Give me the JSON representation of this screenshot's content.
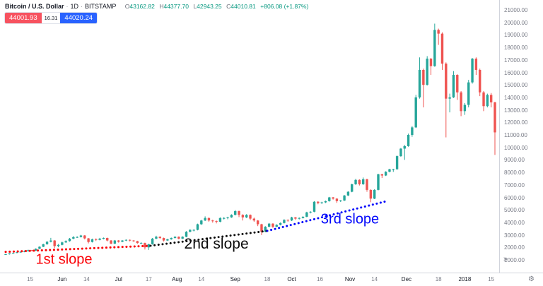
{
  "header": {
    "symbol": "Bitcoin / U.S. Dollar",
    "sep": "·",
    "interval": "1D",
    "exchange": "BITSTAMP",
    "ohlc": {
      "o_label": "O",
      "o": "43162.82",
      "h_label": "H",
      "h": "44377.70",
      "l_label": "L",
      "l": "42943.25",
      "c_label": "C",
      "c": "44010.81",
      "change": "+806.08 (+1.87%)"
    },
    "sell_price": "44001.93",
    "spread": "16.31",
    "buy_price": "44020.24"
  },
  "icons": {
    "chevrons": "»",
    "gear": "⚙"
  },
  "colors": {
    "up": "#26a69a",
    "down": "#ef5350",
    "sell_bg": "#f7525f",
    "buy_bg": "#2962ff",
    "value_text": "#089981",
    "axis_text": "#787b86"
  },
  "chart_data": {
    "type": "candlestick",
    "title": "Bitcoin / U.S. Dollar, 1D, BITSTAMP",
    "y_axis": {
      "min": 1000,
      "max": 21000,
      "step": 1000,
      "unit": "USD",
      "grid": false
    },
    "x_axis_labels": [
      {
        "t": "15",
        "i": 6.5
      },
      {
        "t": "Jun",
        "i": 15,
        "strong": true
      },
      {
        "t": "14",
        "i": 21.5
      },
      {
        "t": "Jul",
        "i": 30,
        "strong": true
      },
      {
        "t": "17",
        "i": 38
      },
      {
        "t": "Aug",
        "i": 45.5,
        "strong": true
      },
      {
        "t": "14",
        "i": 52
      },
      {
        "t": "Sep",
        "i": 61,
        "strong": true
      },
      {
        "t": "18",
        "i": 69.5
      },
      {
        "t": "Oct",
        "i": 76,
        "strong": true
      },
      {
        "t": "16",
        "i": 83.5
      },
      {
        "t": "Nov",
        "i": 91.5,
        "strong": true
      },
      {
        "t": "14",
        "i": 98
      },
      {
        "t": "Dec",
        "i": 106.5,
        "strong": true
      },
      {
        "t": "18",
        "i": 115
      },
      {
        "t": "2018",
        "i": 122,
        "strong": true
      },
      {
        "t": "15",
        "i": 129
      }
    ],
    "candles": [
      [
        1430,
        1480,
        1390,
        1450
      ],
      [
        1450,
        1540,
        1420,
        1520
      ],
      [
        1520,
        1580,
        1490,
        1560
      ],
      [
        1560,
        1640,
        1530,
        1610
      ],
      [
        1610,
        1670,
        1560,
        1650
      ],
      [
        1650,
        1750,
        1610,
        1690
      ],
      [
        1690,
        1820,
        1660,
        1780
      ],
      [
        1780,
        1800,
        1680,
        1740
      ],
      [
        1740,
        1920,
        1710,
        1890
      ],
      [
        1890,
        2090,
        1860,
        2050
      ],
      [
        2050,
        2290,
        2020,
        2250
      ],
      [
        2250,
        2500,
        2210,
        2450
      ],
      [
        2450,
        2760,
        2400,
        2550
      ],
      [
        2550,
        2580,
        1940,
        2100
      ],
      [
        2100,
        2270,
        2010,
        2200
      ],
      [
        2200,
        2460,
        2160,
        2400
      ],
      [
        2400,
        2560,
        2350,
        2500
      ],
      [
        2500,
        2750,
        2460,
        2700
      ],
      [
        2700,
        2900,
        2650,
        2820
      ],
      [
        2820,
        2890,
        2750,
        2830
      ],
      [
        2830,
        3000,
        2790,
        2950
      ],
      [
        2950,
        2980,
        2640,
        2720
      ],
      [
        2720,
        2750,
        2320,
        2430
      ],
      [
        2430,
        2700,
        2390,
        2650
      ],
      [
        2650,
        2720,
        2510,
        2600
      ],
      [
        2600,
        2760,
        2560,
        2700
      ],
      [
        2700,
        2790,
        2640,
        2750
      ],
      [
        2750,
        2780,
        2480,
        2550
      ],
      [
        2550,
        2590,
        2250,
        2300
      ],
      [
        2300,
        2590,
        2260,
        2550
      ],
      [
        2550,
        2580,
        2380,
        2450
      ],
      [
        2450,
        2590,
        2410,
        2550
      ],
      [
        2550,
        2640,
        2500,
        2600
      ],
      [
        2600,
        2630,
        2480,
        2550
      ],
      [
        2550,
        2580,
        2440,
        2500
      ],
      [
        2500,
        2530,
        2290,
        2350
      ],
      [
        2350,
        2420,
        2270,
        2350
      ],
      [
        2350,
        2380,
        1830,
        2000
      ],
      [
        2000,
        2290,
        1800,
        2250
      ],
      [
        2250,
        2750,
        2220,
        2700
      ],
      [
        2700,
        2930,
        2650,
        2850
      ],
      [
        2850,
        2880,
        2680,
        2750
      ],
      [
        2750,
        2780,
        2470,
        2550
      ],
      [
        2550,
        2690,
        2510,
        2650
      ],
      [
        2650,
        2790,
        2610,
        2750
      ],
      [
        2750,
        2890,
        2710,
        2850
      ],
      [
        2850,
        2880,
        2640,
        2700
      ],
      [
        2700,
        2890,
        2660,
        2850
      ],
      [
        2850,
        3300,
        2810,
        3250
      ],
      [
        3250,
        3450,
        3200,
        3400
      ],
      [
        3400,
        3450,
        3280,
        3400
      ],
      [
        3400,
        3900,
        3360,
        3850
      ],
      [
        3850,
        4200,
        3800,
        4150
      ],
      [
        4150,
        4480,
        4110,
        4350
      ],
      [
        4350,
        4390,
        4050,
        4150
      ],
      [
        4150,
        4210,
        3980,
        4100
      ],
      [
        4100,
        4150,
        3920,
        4050
      ],
      [
        4050,
        4400,
        4010,
        4350
      ],
      [
        4350,
        4420,
        4230,
        4350
      ],
      [
        4350,
        4450,
        4250,
        4400
      ],
      [
        4400,
        4650,
        4360,
        4600
      ],
      [
        4600,
        4980,
        4560,
        4900
      ],
      [
        4900,
        4940,
        4420,
        4600
      ],
      [
        4600,
        4650,
        4150,
        4400
      ],
      [
        4400,
        4660,
        4340,
        4600
      ],
      [
        4600,
        4640,
        4190,
        4300
      ],
      [
        4300,
        4380,
        4050,
        4150
      ],
      [
        4150,
        4180,
        3700,
        3850
      ],
      [
        3850,
        3890,
        2980,
        3250
      ],
      [
        3250,
        3700,
        3210,
        3650
      ],
      [
        3650,
        3950,
        3610,
        3900
      ],
      [
        3900,
        3930,
        3560,
        3650
      ],
      [
        3650,
        3850,
        3610,
        3800
      ],
      [
        3800,
        3990,
        3760,
        3950
      ],
      [
        3950,
        4250,
        3910,
        4200
      ],
      [
        4200,
        4230,
        4050,
        4150
      ],
      [
        4150,
        4450,
        4110,
        4400
      ],
      [
        4400,
        4430,
        4200,
        4300
      ],
      [
        4300,
        4400,
        4230,
        4350
      ],
      [
        4350,
        4490,
        4310,
        4450
      ],
      [
        4450,
        4850,
        4410,
        4800
      ],
      [
        4800,
        4890,
        4720,
        4850
      ],
      [
        4850,
        5700,
        4810,
        5650
      ],
      [
        5650,
        5690,
        5450,
        5550
      ],
      [
        5550,
        5650,
        5480,
        5600
      ],
      [
        5600,
        5740,
        5550,
        5700
      ],
      [
        5700,
        6040,
        5660,
        6000
      ],
      [
        6000,
        6030,
        5820,
        5900
      ],
      [
        5900,
        5930,
        5560,
        5700
      ],
      [
        5700,
        5790,
        5630,
        5750
      ],
      [
        5750,
        6190,
        5710,
        6150
      ],
      [
        6150,
        6490,
        6110,
        6450
      ],
      [
        6450,
        7090,
        6410,
        7050
      ],
      [
        7050,
        7480,
        7000,
        7400
      ],
      [
        7400,
        7440,
        6950,
        7050
      ],
      [
        7050,
        7590,
        7000,
        7450
      ],
      [
        7450,
        7490,
        6450,
        6600
      ],
      [
        6600,
        6640,
        5610,
        5900
      ],
      [
        5900,
        6650,
        5860,
        6600
      ],
      [
        6600,
        7890,
        6560,
        7850
      ],
      [
        7850,
        7880,
        7550,
        7750
      ],
      [
        7750,
        8090,
        7710,
        8050
      ],
      [
        8050,
        8290,
        8000,
        8250
      ],
      [
        8250,
        8290,
        8040,
        8250
      ],
      [
        8250,
        9350,
        8210,
        9300
      ],
      [
        9300,
        9950,
        9250,
        9900
      ],
      [
        9900,
        10200,
        9000,
        10100
      ],
      [
        10100,
        11100,
        10050,
        11000
      ],
      [
        11000,
        11700,
        10850,
        11600
      ],
      [
        11600,
        14200,
        11550,
        14000
      ],
      [
        14000,
        17200,
        13900,
        16200
      ],
      [
        16200,
        16300,
        13200,
        15000
      ],
      [
        15000,
        17300,
        14950,
        17100
      ],
      [
        17100,
        17150,
        15800,
        16500
      ],
      [
        16500,
        19900,
        16450,
        19400
      ],
      [
        19400,
        19500,
        18200,
        19100
      ],
      [
        19100,
        19200,
        16200,
        16700
      ],
      [
        16700,
        16800,
        10800,
        13900
      ],
      [
        13900,
        14300,
        12800,
        14000
      ],
      [
        14000,
        16100,
        13950,
        15800
      ],
      [
        15800,
        15850,
        13800,
        14400
      ],
      [
        14400,
        14500,
        12500,
        12900
      ],
      [
        12900,
        13550,
        12600,
        13400
      ],
      [
        13400,
        15400,
        13200,
        15200
      ],
      [
        15200,
        17150,
        15100,
        17100
      ],
      [
        17100,
        17200,
        15800,
        16200
      ],
      [
        16200,
        16300,
        14100,
        14400
      ],
      [
        14400,
        14500,
        12900,
        13300
      ],
      [
        13300,
        14300,
        13200,
        14200
      ],
      [
        14200,
        14350,
        13200,
        13600
      ],
      [
        13600,
        13650,
        9400,
        11200
      ]
    ],
    "annotations": {
      "slopes": [
        {
          "id": "slope-1",
          "color": "#fb0207",
          "from": {
            "i": 0,
            "p": 1640
          },
          "to": {
            "i": 38.5,
            "p": 2130
          },
          "label": {
            "text": "1st slope",
            "i": 15.5,
            "p": 700,
            "size": 20
          }
        },
        {
          "id": "slope-2",
          "color": "#0b0b0b",
          "from": {
            "i": 38.5,
            "p": 2130
          },
          "to": {
            "i": 69.5,
            "p": 3320
          },
          "label": {
            "text": "2nd slope",
            "i": 56,
            "p": 1900,
            "size": 21
          }
        },
        {
          "id": "slope-3",
          "color": "#0207fb",
          "from": {
            "i": 69.5,
            "p": 3320
          },
          "to": {
            "i": 101,
            "p": 5680
          },
          "label": {
            "text": "3rd slope",
            "i": 91.5,
            "p": 3900,
            "size": 20
          }
        }
      ]
    }
  }
}
